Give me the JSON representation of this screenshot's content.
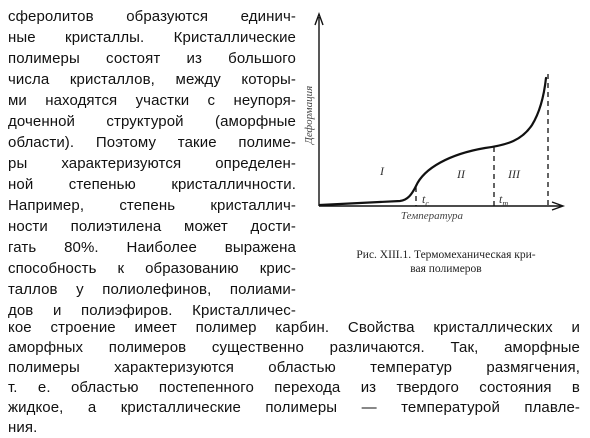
{
  "column_lines": [
    "сферолитов образуются единич-",
    "ные кристаллы. Кристаллические",
    "полимеры состоят из большого",
    "числа кристаллов, между которы-",
    "ми находятся участки с неупоря-",
    "доченной структурой (аморфные",
    "области). Поэтому такие полиме-",
    "ры характеризуются определен-",
    "ной степенью кристалличности.",
    "Например, степень кристаллич-",
    "ности полиэтилена может дости-",
    "гать 80%. Наиболее выражена",
    "способность к образованию крис-",
    "таллов у полиолефинов, полиами-",
    "дов и полиэфиров. Кристалличес-"
  ],
  "full_lines": [
    "кое строение имеет полимер карбин. Свойства кристаллических и",
    "аморфных полимеров существенно различаются. Так, аморфные",
    "полимеры характеризуются областью температур размягчения,",
    "т. е. областью постепенного перехода из твердого состояния в",
    "жидкое, а кристаллические полимеры — температурой плавле-",
    "ния."
  ],
  "figure": {
    "caption_line1": "Рис. XIII.1. Термомеханическая кри-",
    "caption_line2": "вая полимеров",
    "x_axis_label": "Температура",
    "y_axis_label": "Деформация",
    "regions": [
      "I",
      "II",
      "III"
    ],
    "temperatures": [
      "t",
      "t"
    ],
    "temperature_subscripts": [
      "с",
      "т"
    ]
  }
}
